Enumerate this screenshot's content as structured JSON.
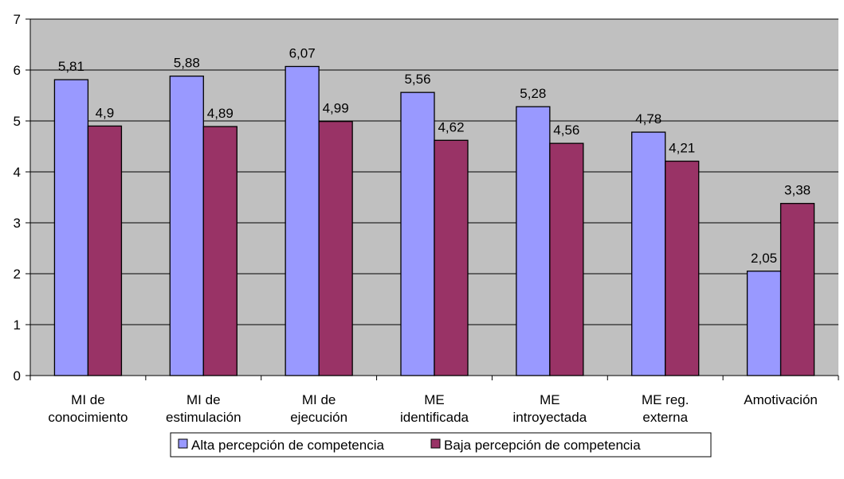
{
  "chart_data": {
    "type": "bar",
    "categories": [
      [
        "MI de",
        "conocimiento"
      ],
      [
        "MI de",
        "estimulación"
      ],
      [
        "MI de",
        "ejecución"
      ],
      [
        "ME",
        "identificada"
      ],
      [
        "ME",
        "introyectada"
      ],
      [
        "ME reg.",
        "externa"
      ],
      [
        "Amotivación"
      ]
    ],
    "series": [
      {
        "name": "Alta percepción de competencia",
        "values": [
          5.81,
          5.88,
          6.07,
          5.56,
          5.28,
          4.78,
          2.05
        ],
        "labels": [
          "5,81",
          "5,88",
          "6,07",
          "5,56",
          "5,28",
          "4,78",
          "2,05"
        ],
        "color": "#9999ff"
      },
      {
        "name": "Baja percepción de competencia",
        "values": [
          4.9,
          4.89,
          4.99,
          4.62,
          4.56,
          4.21,
          3.38
        ],
        "labels": [
          "4,9",
          "4,89",
          "4,99",
          "4,62",
          "4,56",
          "4,21",
          "3,38"
        ],
        "color": "#993366"
      }
    ],
    "ylim": [
      0,
      7
    ],
    "yticks": [
      "0",
      "1",
      "2",
      "3",
      "4",
      "5",
      "6",
      "7"
    ],
    "grid": true,
    "plot_background": "#c0c0c0",
    "legend_position": "bottom"
  }
}
